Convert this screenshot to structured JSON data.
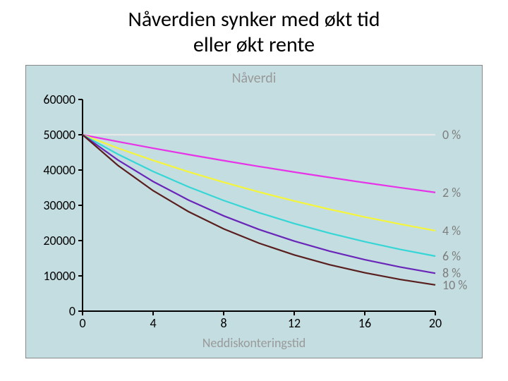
{
  "title_line1": "Nåverdien synker med økt tid",
  "title_line2": "eller økt rente",
  "chart": {
    "type": "line",
    "title": "Nåverdi",
    "xaxis_label": "Neddiskonteringstid",
    "background_color": "#c3dde0",
    "border_color": "#888888",
    "title_color": "#9a9a9a",
    "axis_label_color": "#9a9a9a",
    "tick_color": "#000000",
    "tick_fontsize": 18,
    "title_fontsize": 20,
    "label_fontsize": 18,
    "xlim": [
      0,
      20
    ],
    "ylim": [
      0,
      60000
    ],
    "xtick_step": 4,
    "ytick_step": 10000,
    "xticks": [
      0,
      4,
      8,
      12,
      16,
      20
    ],
    "yticks": [
      0,
      10000,
      20000,
      30000,
      40000,
      50000,
      60000
    ],
    "line_width": 2.2,
    "axis_line_color": "#000000",
    "series": [
      {
        "label": "0 %",
        "color": "#e8e8e8",
        "label_y": 50000,
        "x": [
          0,
          2,
          4,
          6,
          8,
          10,
          12,
          14,
          16,
          18,
          20
        ],
        "y": [
          50000,
          50000,
          50000,
          50000,
          50000,
          50000,
          50000,
          50000,
          50000,
          50000,
          50000
        ]
      },
      {
        "label": "2 %",
        "color": "#e733e7",
        "label_y": 33650,
        "x": [
          0,
          2,
          4,
          6,
          8,
          10,
          12,
          14,
          16,
          18,
          20
        ],
        "y": [
          50000,
          48058,
          46192,
          44399,
          42675,
          41017,
          39427,
          37897,
          36425,
          35011,
          33650
        ]
      },
      {
        "label": "4 %",
        "color": "#f5f53a",
        "label_y": 22820,
        "x": [
          0,
          2,
          4,
          6,
          8,
          10,
          12,
          14,
          16,
          18,
          20
        ],
        "y": [
          50000,
          46228,
          42740,
          39516,
          36534,
          33778,
          31229,
          28873,
          26694,
          24680,
          22820
        ]
      },
      {
        "label": "6 %",
        "color": "#37d6d6",
        "label_y": 15600,
        "x": [
          0,
          2,
          4,
          6,
          8,
          10,
          12,
          14,
          16,
          18,
          20
        ],
        "y": [
          50000,
          44500,
          39605,
          35248,
          31371,
          27920,
          24848,
          22115,
          19682,
          17517,
          15600
        ]
      },
      {
        "label": "8 %",
        "color": "#6a26b8",
        "label_y": 10730,
        "x": [
          0,
          2,
          4,
          6,
          8,
          10,
          12,
          14,
          16,
          18,
          20
        ],
        "y": [
          50000,
          42867,
          36751,
          31508,
          27013,
          23158,
          19854,
          17021,
          14592,
          12510,
          10730
        ]
      },
      {
        "label": "10 %",
        "color": "#5a1e1e",
        "label_y": 7430,
        "x": [
          0,
          2,
          4,
          6,
          8,
          10,
          12,
          14,
          16,
          18,
          20
        ],
        "y": [
          50000,
          41322,
          34151,
          28224,
          23325,
          19277,
          15932,
          13167,
          10882,
          8993,
          7430
        ]
      }
    ]
  }
}
